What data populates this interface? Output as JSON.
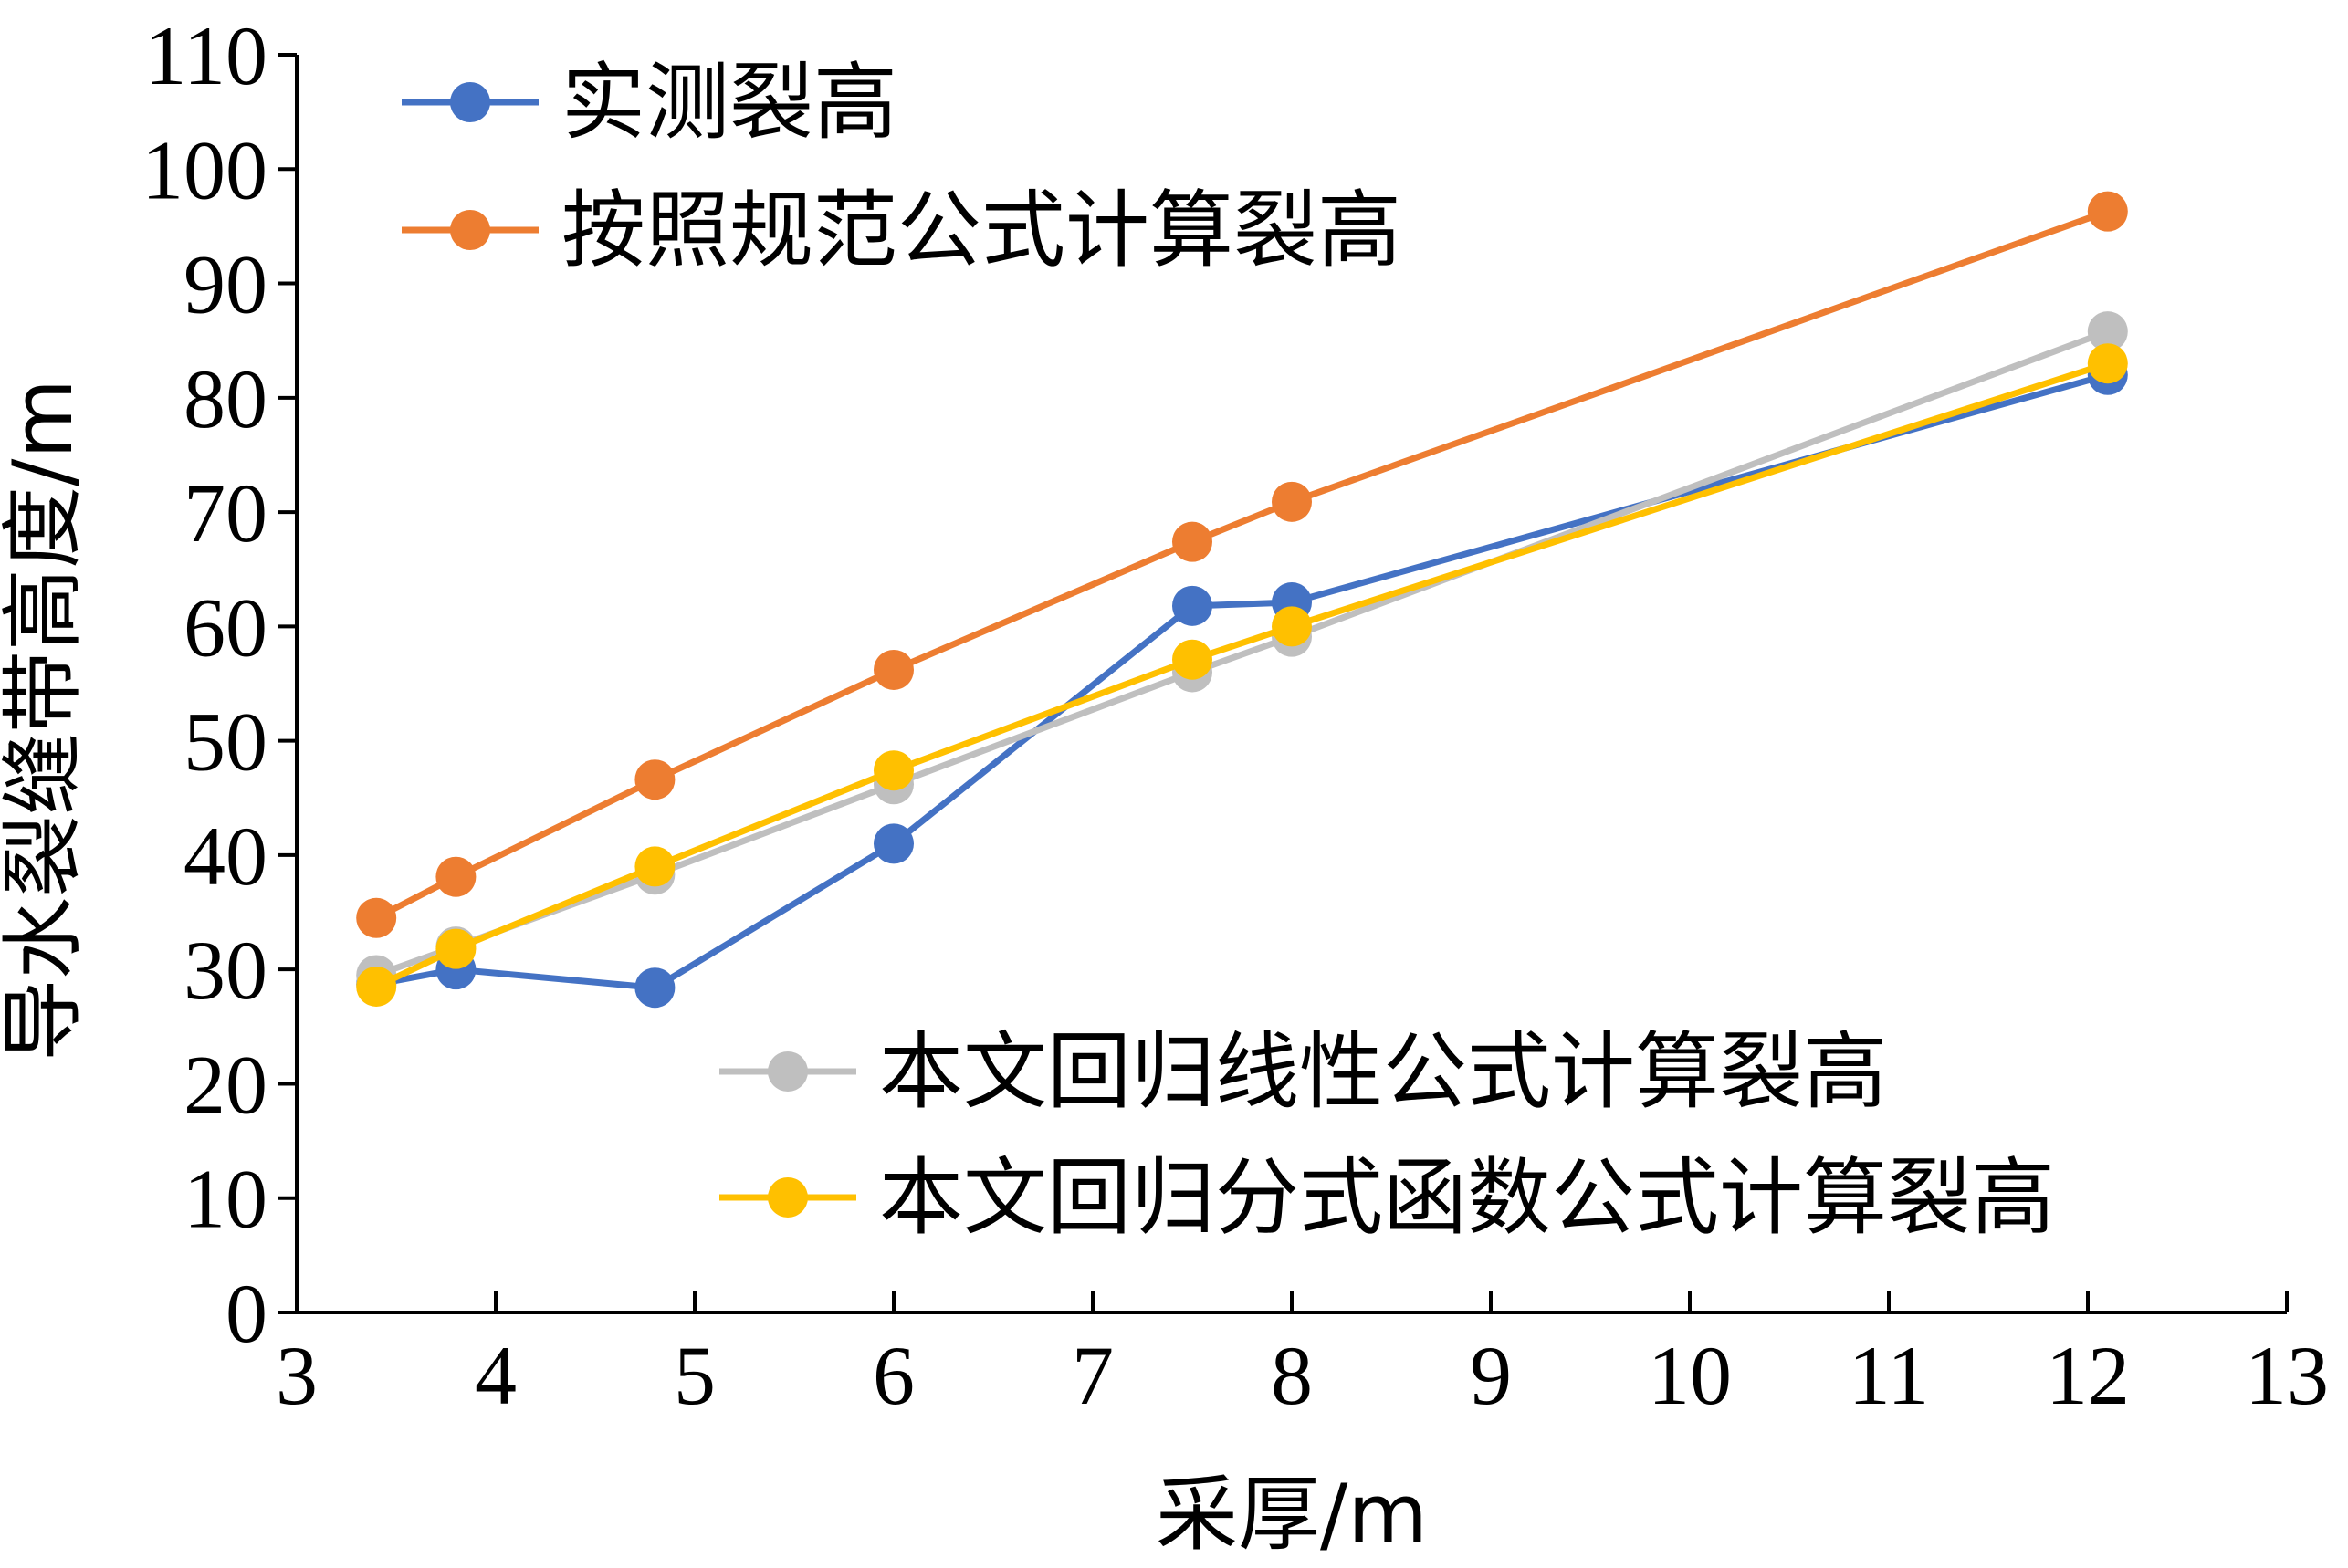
{
  "chart_data": {
    "type": "line",
    "title": "",
    "xlabel": "采厚/m",
    "ylabel": "导水裂缝带高度/m",
    "xlim": [
      3,
      13
    ],
    "ylim": [
      0,
      110
    ],
    "xticks": [
      3,
      4,
      5,
      6,
      7,
      8,
      9,
      10,
      11,
      12,
      13
    ],
    "yticks": [
      0,
      10,
      20,
      30,
      40,
      50,
      60,
      70,
      80,
      90,
      100,
      110
    ],
    "grid": false,
    "x": [
      3.4,
      3.8,
      4.8,
      6.0,
      7.5,
      8.0,
      12.1
    ],
    "series": [
      {
        "name": "实测裂高",
        "color": "#4472C4",
        "legend_group": "top",
        "values": [
          28.7,
          30.0,
          28.4,
          41.0,
          61.8,
          62.1,
          82.0
        ]
      },
      {
        "name": "按照规范公式计算裂高",
        "color": "#ED7D31",
        "legend_group": "top",
        "values": [
          34.5,
          38.1,
          46.6,
          56.2,
          67.4,
          70.9,
          96.3
        ]
      },
      {
        "name": "本文回归线性公式计算裂高",
        "color": "#BFBFBF",
        "legend_group": "bottom",
        "values": [
          29.5,
          32.0,
          38.3,
          46.2,
          56.0,
          59.1,
          85.8
        ]
      },
      {
        "name": "本文回归分式函数公式计算裂高",
        "color": "#FFC000",
        "legend_group": "bottom",
        "values": [
          28.5,
          31.8,
          39.0,
          47.4,
          57.1,
          60.0,
          83.0
        ]
      }
    ]
  }
}
